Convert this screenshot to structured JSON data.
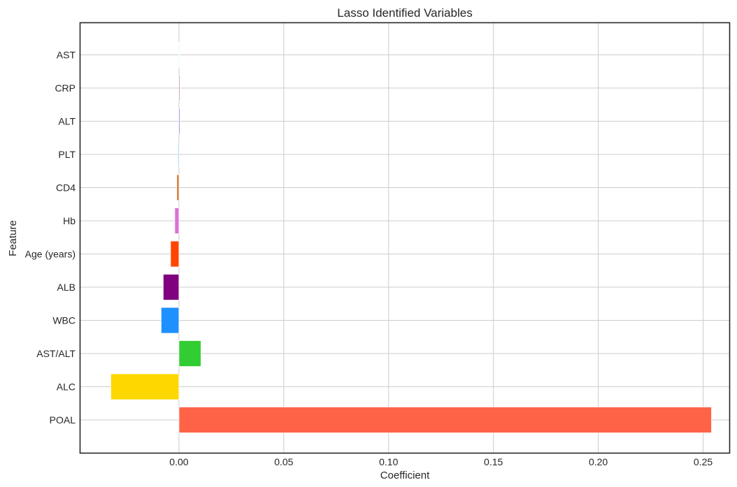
{
  "chart_data": {
    "type": "bar",
    "orientation": "horizontal",
    "title": "Lasso Identified Variables",
    "xlabel": "Coefficient",
    "ylabel": "Feature",
    "xlim": [
      -0.047,
      0.2625
    ],
    "grid": true,
    "x_ticks": [
      0.0,
      0.05,
      0.1,
      0.15,
      0.2,
      0.25
    ],
    "x_tick_labels": [
      "0.00",
      "0.05",
      "0.10",
      "0.15",
      "0.20",
      "0.25"
    ],
    "categories": [
      "POAL",
      "ALC",
      "AST/ALT",
      "WBC",
      "ALB",
      "Age (years)",
      "Hb",
      "CD4",
      "PLT",
      "ALT",
      "CRP",
      "AST"
    ],
    "values": [
      0.254,
      -0.0325,
      0.0105,
      -0.0085,
      -0.0075,
      -0.004,
      -0.002,
      -0.001,
      -0.0005,
      0.0005,
      0.0005,
      0.0002
    ],
    "colors": [
      "#FF6347",
      "#FFD700",
      "#32CD32",
      "#1E90FF",
      "#800080",
      "#FF4500",
      "#DA70D6",
      "#D2691E",
      "#87CEEB",
      "#9370DB",
      "#BC8F8F",
      "#E0FFFF"
    ]
  }
}
